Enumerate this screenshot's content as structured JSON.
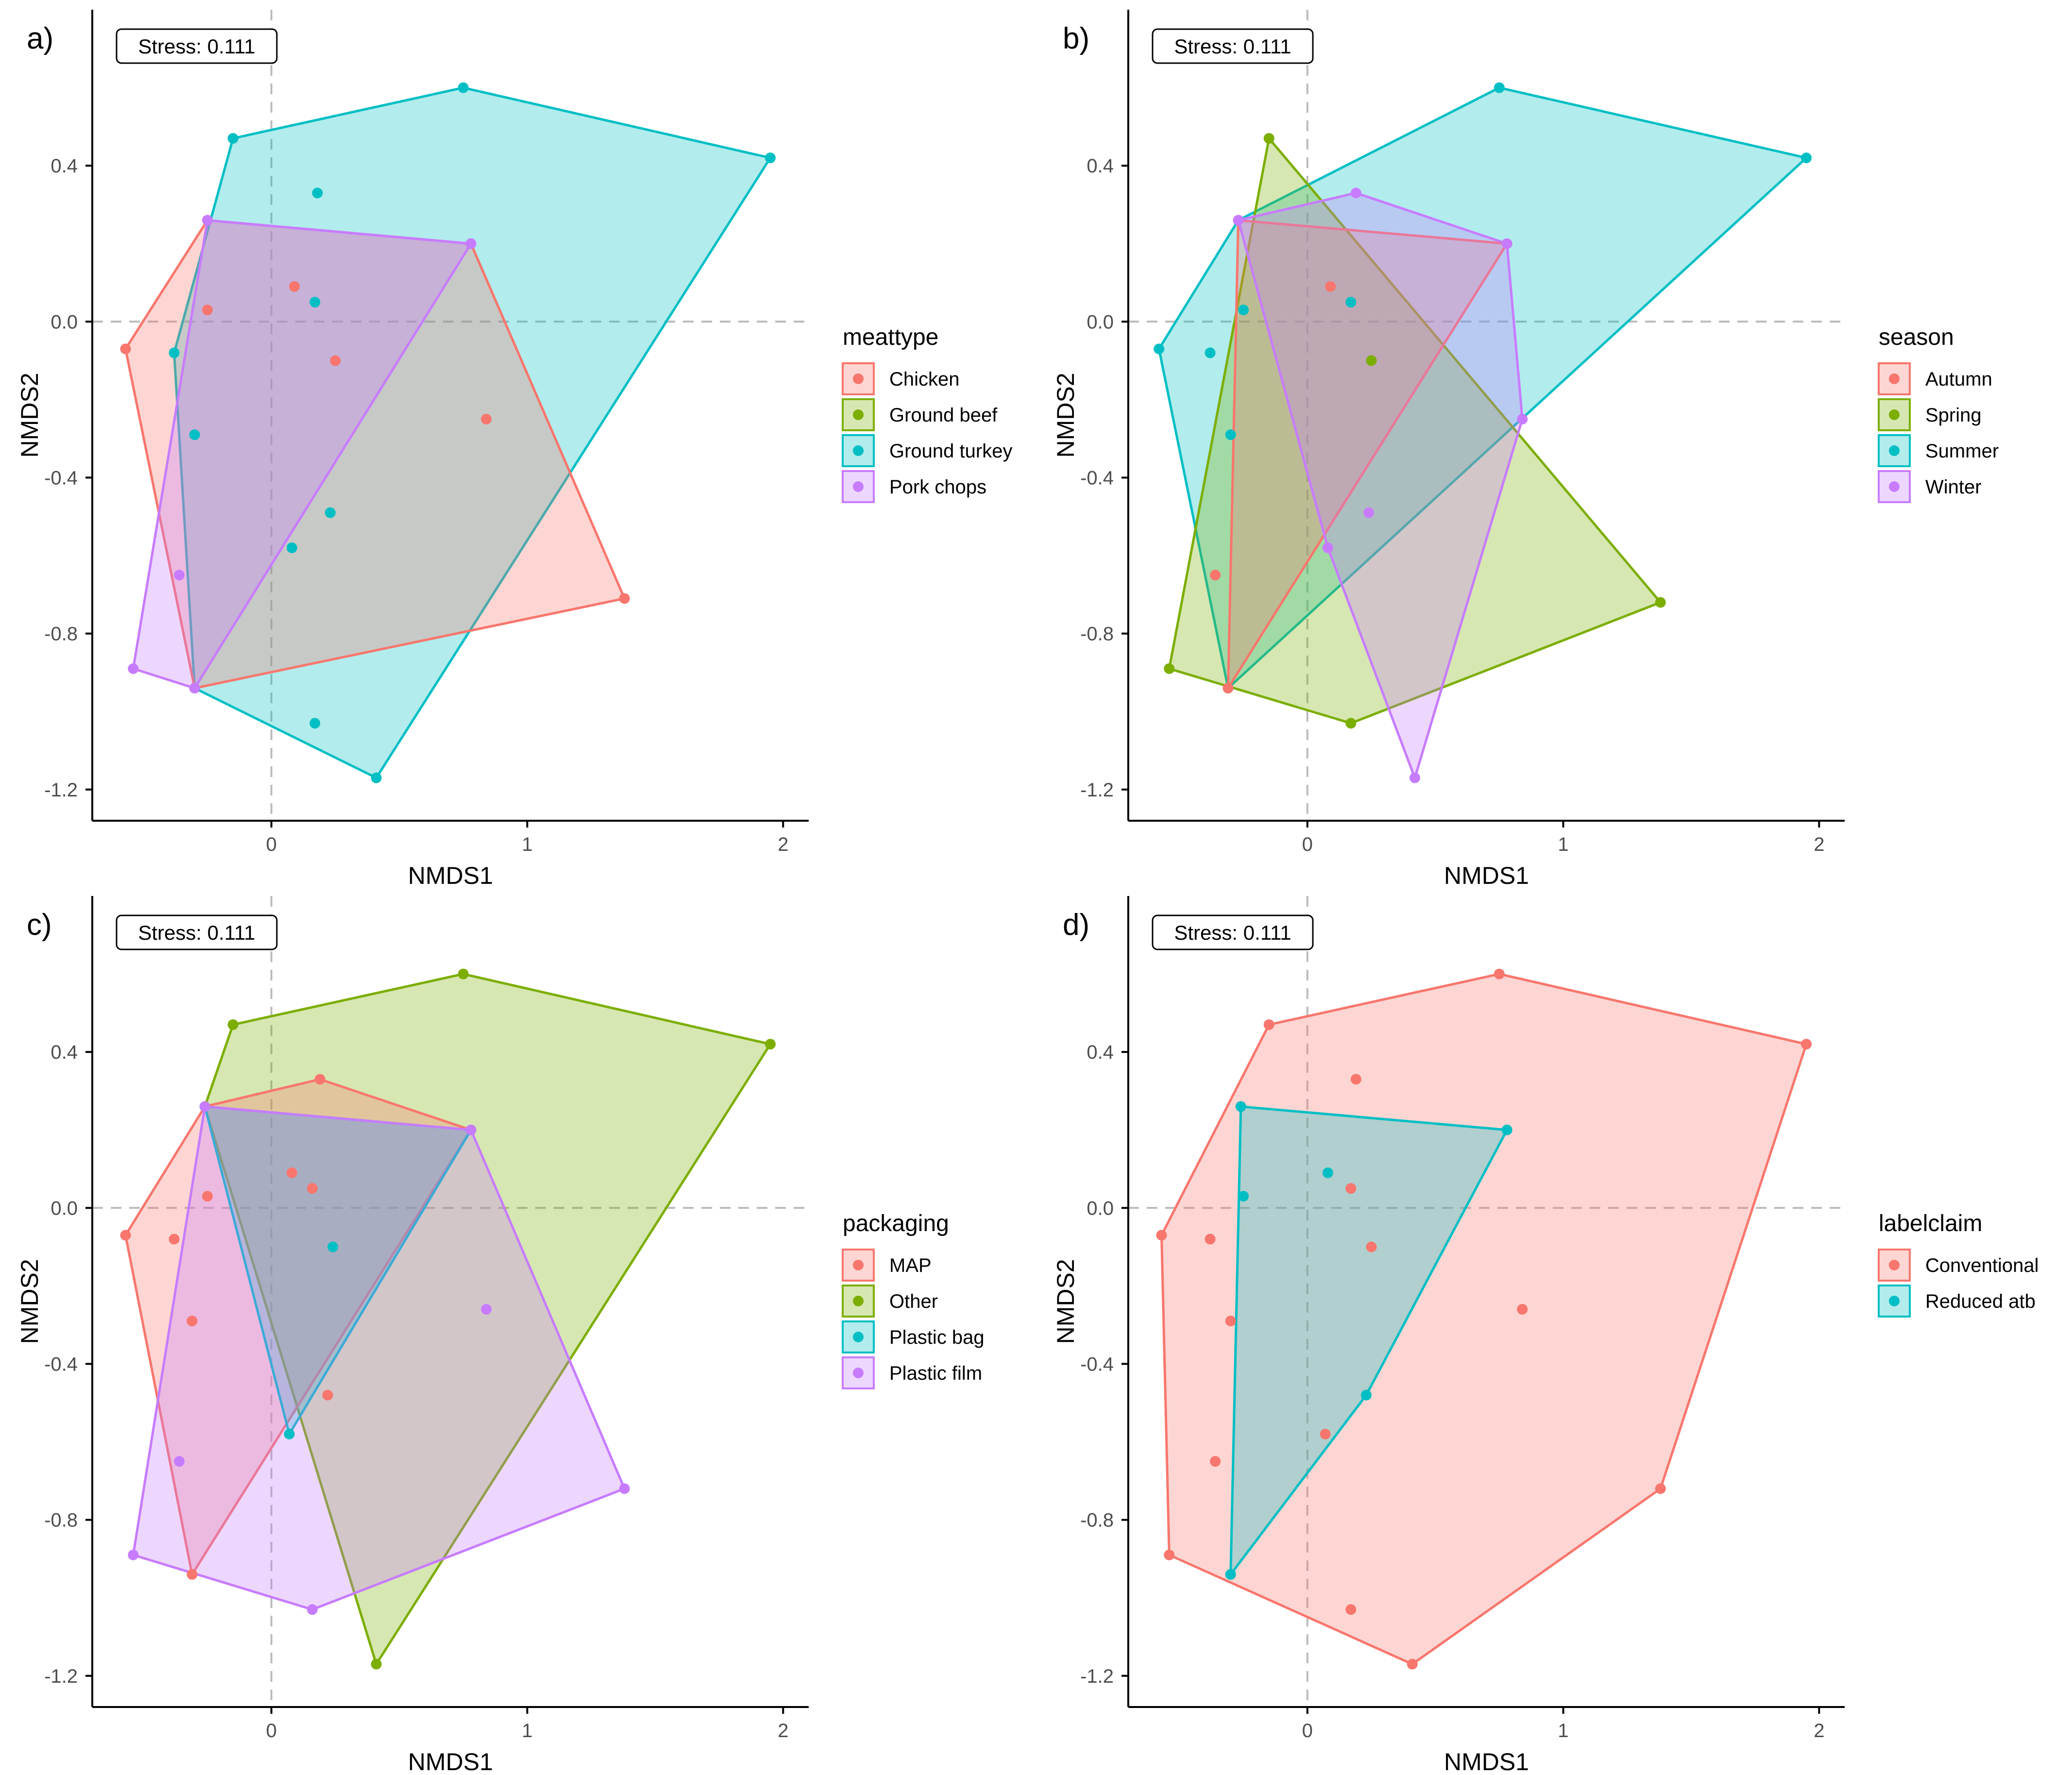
{
  "figure": {
    "palette": {
      "red": "#F8766D",
      "green": "#7CAE00",
      "cyan": "#00BFC4",
      "violet": "#C77CFF",
      "axis": "#000000",
      "zero_line": "#bbbbbb",
      "tick_text": "#4d4d4d"
    }
  },
  "chart_data": [
    {
      "type": "scatter",
      "panel_label": "a)",
      "stress_text": "Stress:  0.111",
      "xlabel": "NMDS1",
      "ylabel": "NMDS2",
      "xlim": [
        -0.7,
        2.1
      ],
      "ylim": [
        -1.28,
        0.8
      ],
      "xticks": [
        0,
        1,
        2
      ],
      "yticks": [
        0.4,
        0.0,
        -0.4,
        -0.8,
        -1.2
      ],
      "zero_lines": true,
      "legend": {
        "title": "meattype",
        "position": "right",
        "entries": [
          {
            "label": "Chicken",
            "color": "#F8766D"
          },
          {
            "label": "Ground beef",
            "color": "#7CAE00"
          },
          {
            "label": "Ground turkey",
            "color": "#00BFC4"
          },
          {
            "label": "Pork chops",
            "color": "#C77CFF"
          }
        ]
      },
      "series": [
        {
          "name": "Ground turkey",
          "color": "#00BFC4",
          "points": [
            [
              -0.15,
              0.47
            ],
            [
              0.75,
              0.6
            ],
            [
              1.95,
              0.42
            ],
            [
              0.41,
              -1.17
            ],
            [
              -0.3,
              -0.94
            ],
            [
              -0.38,
              -0.08
            ],
            [
              0.18,
              0.33
            ],
            [
              0.17,
              0.05
            ],
            [
              -0.3,
              -0.29
            ],
            [
              0.23,
              -0.49
            ],
            [
              0.08,
              -0.58
            ],
            [
              0.17,
              -1.03
            ]
          ],
          "hull": [
            [
              -0.15,
              0.47
            ],
            [
              0.75,
              0.6
            ],
            [
              1.95,
              0.42
            ],
            [
              0.41,
              -1.17
            ],
            [
              -0.3,
              -0.94
            ],
            [
              -0.38,
              -0.08
            ]
          ]
        },
        {
          "name": "Chicken",
          "color": "#F8766D",
          "points": [
            [
              -0.57,
              -0.07
            ],
            [
              -0.25,
              0.26
            ],
            [
              0.78,
              0.2
            ],
            [
              1.38,
              -0.71
            ],
            [
              -0.3,
              -0.94
            ],
            [
              0.09,
              0.09
            ],
            [
              -0.25,
              0.03
            ],
            [
              0.25,
              -0.1
            ],
            [
              0.84,
              -0.25
            ]
          ],
          "hull": [
            [
              -0.57,
              -0.07
            ],
            [
              -0.25,
              0.26
            ],
            [
              0.78,
              0.2
            ],
            [
              1.38,
              -0.71
            ],
            [
              -0.3,
              -0.94
            ]
          ]
        },
        {
          "name": "Pork chops",
          "color": "#C77CFF",
          "points": [
            [
              -0.25,
              0.26
            ],
            [
              0.78,
              0.2
            ],
            [
              -0.3,
              -0.94
            ],
            [
              -0.54,
              -0.89
            ],
            [
              -0.36,
              -0.65
            ]
          ],
          "hull": [
            [
              -0.25,
              0.26
            ],
            [
              0.78,
              0.2
            ],
            [
              -0.3,
              -0.94
            ],
            [
              -0.54,
              -0.89
            ]
          ]
        }
      ]
    },
    {
      "type": "scatter",
      "panel_label": "b)",
      "stress_text": "Stress:  0.111",
      "xlabel": "NMDS1",
      "ylabel": "NMDS2",
      "xlim": [
        -0.7,
        2.1
      ],
      "ylim": [
        -1.28,
        0.8
      ],
      "xticks": [
        0,
        1,
        2
      ],
      "yticks": [
        0.4,
        0.0,
        -0.4,
        -0.8,
        -1.2
      ],
      "zero_lines": true,
      "legend": {
        "title": "season",
        "position": "right",
        "entries": [
          {
            "label": "Autumn",
            "color": "#F8766D"
          },
          {
            "label": "Spring",
            "color": "#7CAE00"
          },
          {
            "label": "Summer",
            "color": "#00BFC4"
          },
          {
            "label": "Winter",
            "color": "#C77CFF"
          }
        ]
      },
      "series": [
        {
          "name": "Summer",
          "color": "#00BFC4",
          "points": [
            [
              -0.58,
              -0.07
            ],
            [
              -0.27,
              0.26
            ],
            [
              0.75,
              0.6
            ],
            [
              1.95,
              0.42
            ],
            [
              -0.31,
              -0.94
            ],
            [
              -0.25,
              0.03
            ],
            [
              -0.38,
              -0.08
            ],
            [
              -0.3,
              -0.29
            ],
            [
              0.17,
              0.05
            ]
          ],
          "hull": [
            [
              -0.58,
              -0.07
            ],
            [
              -0.27,
              0.26
            ],
            [
              0.75,
              0.6
            ],
            [
              1.95,
              0.42
            ],
            [
              -0.31,
              -0.94
            ]
          ]
        },
        {
          "name": "Spring",
          "color": "#7CAE00",
          "points": [
            [
              -0.15,
              0.47
            ],
            [
              1.38,
              -0.72
            ],
            [
              0.17,
              -1.03
            ],
            [
              -0.54,
              -0.89
            ],
            [
              0.25,
              -0.1
            ]
          ],
          "hull": [
            [
              -0.15,
              0.47
            ],
            [
              1.38,
              -0.72
            ],
            [
              0.17,
              -1.03
            ],
            [
              -0.54,
              -0.89
            ]
          ]
        },
        {
          "name": "Autumn",
          "color": "#F8766D",
          "points": [
            [
              -0.27,
              0.26
            ],
            [
              0.78,
              0.2
            ],
            [
              -0.31,
              -0.94
            ],
            [
              0.09,
              0.09
            ],
            [
              -0.36,
              -0.65
            ]
          ],
          "hull": [
            [
              -0.27,
              0.26
            ],
            [
              0.78,
              0.2
            ],
            [
              -0.31,
              -0.94
            ]
          ]
        },
        {
          "name": "Winter",
          "color": "#C77CFF",
          "points": [
            [
              -0.27,
              0.26
            ],
            [
              0.19,
              0.33
            ],
            [
              0.78,
              0.2
            ],
            [
              0.84,
              -0.25
            ],
            [
              0.42,
              -1.17
            ],
            [
              0.08,
              -0.58
            ],
            [
              0.24,
              -0.49
            ]
          ],
          "hull": [
            [
              -0.27,
              0.26
            ],
            [
              0.19,
              0.33
            ],
            [
              0.78,
              0.2
            ],
            [
              0.84,
              -0.25
            ],
            [
              0.42,
              -1.17
            ],
            [
              0.08,
              -0.58
            ]
          ]
        }
      ]
    },
    {
      "type": "scatter",
      "panel_label": "c)",
      "stress_text": "Stress:  0.111",
      "xlabel": "NMDS1",
      "ylabel": "NMDS2",
      "xlim": [
        -0.7,
        2.1
      ],
      "ylim": [
        -1.28,
        0.8
      ],
      "xticks": [
        0,
        1,
        2
      ],
      "yticks": [
        0.4,
        0.0,
        -0.4,
        -0.8,
        -1.2
      ],
      "zero_lines": true,
      "legend": {
        "title": "packaging",
        "position": "right",
        "entries": [
          {
            "label": "MAP",
            "color": "#F8766D"
          },
          {
            "label": "Other",
            "color": "#7CAE00"
          },
          {
            "label": "Plastic bag",
            "color": "#00BFC4"
          },
          {
            "label": "Plastic film",
            "color": "#C77CFF"
          }
        ]
      },
      "series": [
        {
          "name": "Other",
          "color": "#7CAE00",
          "points": [
            [
              -0.15,
              0.47
            ],
            [
              0.75,
              0.6
            ],
            [
              1.95,
              0.42
            ],
            [
              0.41,
              -1.17
            ],
            [
              -0.26,
              0.26
            ]
          ],
          "hull": [
            [
              -0.15,
              0.47
            ],
            [
              0.75,
              0.6
            ],
            [
              1.95,
              0.42
            ],
            [
              0.41,
              -1.17
            ],
            [
              -0.26,
              0.26
            ]
          ]
        },
        {
          "name": "MAP",
          "color": "#F8766D",
          "points": [
            [
              -0.57,
              -0.07
            ],
            [
              -0.26,
              0.26
            ],
            [
              0.19,
              0.33
            ],
            [
              0.78,
              0.2
            ],
            [
              -0.31,
              -0.94
            ],
            [
              0.08,
              0.09
            ],
            [
              0.16,
              0.05
            ],
            [
              -0.25,
              0.03
            ],
            [
              -0.38,
              -0.08
            ],
            [
              -0.31,
              -0.29
            ],
            [
              0.22,
              -0.48
            ]
          ],
          "hull": [
            [
              -0.57,
              -0.07
            ],
            [
              -0.26,
              0.26
            ],
            [
              0.19,
              0.33
            ],
            [
              0.78,
              0.2
            ],
            [
              -0.31,
              -0.94
            ]
          ]
        },
        {
          "name": "Plastic bag",
          "color": "#00BFC4",
          "points": [
            [
              -0.26,
              0.26
            ],
            [
              0.78,
              0.2
            ],
            [
              0.07,
              -0.58
            ],
            [
              0.24,
              -0.1
            ]
          ],
          "hull": [
            [
              -0.26,
              0.26
            ],
            [
              0.78,
              0.2
            ],
            [
              0.07,
              -0.58
            ]
          ]
        },
        {
          "name": "Plastic film",
          "color": "#C77CFF",
          "points": [
            [
              -0.26,
              0.26
            ],
            [
              0.78,
              0.2
            ],
            [
              1.38,
              -0.72
            ],
            [
              0.16,
              -1.03
            ],
            [
              -0.54,
              -0.89
            ],
            [
              0.84,
              -0.26
            ],
            [
              -0.36,
              -0.65
            ]
          ],
          "hull": [
            [
              -0.26,
              0.26
            ],
            [
              0.78,
              0.2
            ],
            [
              1.38,
              -0.72
            ],
            [
              0.16,
              -1.03
            ],
            [
              -0.54,
              -0.89
            ]
          ]
        }
      ]
    },
    {
      "type": "scatter",
      "panel_label": "d)",
      "stress_text": "Stress:  0.111",
      "xlabel": "NMDS1",
      "ylabel": "NMDS2",
      "xlim": [
        -0.7,
        2.1
      ],
      "ylim": [
        -1.28,
        0.8
      ],
      "xticks": [
        0,
        1,
        2
      ],
      "yticks": [
        0.4,
        0.0,
        -0.4,
        -0.8,
        -1.2
      ],
      "zero_lines": true,
      "legend": {
        "title": "labelclaim",
        "position": "right",
        "entries": [
          {
            "label": "Conventional",
            "color": "#F8766D"
          },
          {
            "label": "Reduced atb",
            "color": "#00BFC4"
          }
        ]
      },
      "series": [
        {
          "name": "Conventional",
          "color": "#F8766D",
          "points": [
            [
              -0.15,
              0.47
            ],
            [
              0.75,
              0.6
            ],
            [
              1.95,
              0.42
            ],
            [
              1.38,
              -0.72
            ],
            [
              0.41,
              -1.17
            ],
            [
              -0.54,
              -0.89
            ],
            [
              -0.57,
              -0.07
            ],
            [
              -0.26,
              0.26
            ],
            [
              0.19,
              0.33
            ],
            [
              0.17,
              0.05
            ],
            [
              0.25,
              -0.1
            ],
            [
              0.84,
              -0.26
            ],
            [
              -0.38,
              -0.08
            ],
            [
              -0.3,
              -0.29
            ],
            [
              0.07,
              -0.58
            ],
            [
              -0.36,
              -0.65
            ],
            [
              0.17,
              -1.03
            ],
            [
              -0.3,
              -0.94
            ]
          ],
          "hull": [
            [
              -0.15,
              0.47
            ],
            [
              0.75,
              0.6
            ],
            [
              1.95,
              0.42
            ],
            [
              1.38,
              -0.72
            ],
            [
              0.41,
              -1.17
            ],
            [
              -0.54,
              -0.89
            ],
            [
              -0.57,
              -0.07
            ]
          ]
        },
        {
          "name": "Reduced atb",
          "color": "#00BFC4",
          "points": [
            [
              -0.26,
              0.26
            ],
            [
              0.78,
              0.2
            ],
            [
              0.23,
              -0.48
            ],
            [
              -0.3,
              -0.94
            ],
            [
              0.08,
              0.09
            ],
            [
              -0.25,
              0.03
            ]
          ],
          "hull": [
            [
              -0.26,
              0.26
            ],
            [
              0.78,
              0.2
            ],
            [
              0.23,
              -0.48
            ],
            [
              -0.3,
              -0.94
            ]
          ]
        }
      ]
    }
  ]
}
